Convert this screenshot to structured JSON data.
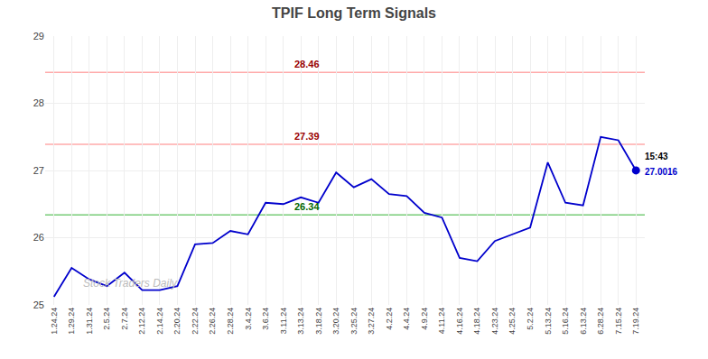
{
  "chart_data": {
    "type": "line",
    "title": "TPIF Long Term Signals",
    "categories": [
      "1.24.24",
      "1.29.24",
      "1.31.24",
      "2.5.24",
      "2.7.24",
      "2.12.24",
      "2.14.24",
      "2.20.24",
      "2.22.24",
      "2.26.24",
      "2.28.24",
      "3.4.24",
      "3.6.24",
      "3.11.24",
      "3.13.24",
      "3.18.24",
      "3.20.24",
      "3.25.24",
      "3.27.24",
      "4.2.24",
      "4.4.24",
      "4.9.24",
      "4.11.24",
      "4.16.24",
      "4.18.24",
      "4.23.24",
      "4.25.24",
      "5.2.24",
      "5.13.24",
      "5.16.24",
      "6.13.24",
      "6.28.24",
      "7.15.24",
      "7.19.24"
    ],
    "values": [
      25.12,
      25.55,
      25.38,
      25.28,
      25.48,
      25.22,
      25.22,
      25.28,
      25.9,
      25.92,
      26.1,
      26.05,
      26.52,
      26.5,
      26.6,
      26.52,
      26.97,
      26.75,
      26.87,
      26.65,
      26.62,
      26.37,
      26.3,
      25.7,
      25.65,
      25.95,
      26.05,
      26.15,
      27.12,
      26.52,
      26.48,
      27.5,
      27.45,
      27.0
    ],
    "color": "#0000cc",
    "ylim": [
      25.0,
      29.0
    ],
    "yticks": [
      25,
      26,
      27,
      28,
      29
    ],
    "grid": true,
    "reference_lines": [
      {
        "value": 28.46,
        "label": "28.46",
        "color": "#ffaaaa",
        "label_color": "#990000"
      },
      {
        "value": 27.39,
        "label": "27.39",
        "color": "#ffaaaa",
        "label_color": "#990000"
      },
      {
        "value": 26.34,
        "label": "26.34",
        "color": "#77cc77",
        "label_color": "#006600"
      }
    ],
    "last_point": {
      "value": 27.0016,
      "label": "27.0016",
      "time": "15:43",
      "color": "#0000cc"
    },
    "watermark": "Stock Traders Daily"
  }
}
